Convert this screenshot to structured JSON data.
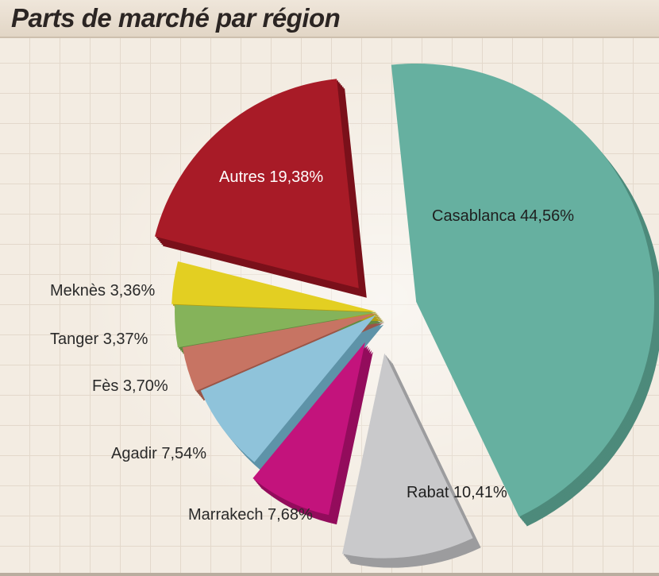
{
  "chart_data": {
    "type": "pie",
    "title": "Parts de marché par région",
    "slices": [
      {
        "label": "Casablanca 44,56%",
        "name": "Casablanca",
        "value": 44.56,
        "color": "#66b0a0",
        "side_color": "#4d8a7b"
      },
      {
        "label": "Rabat 10,41%",
        "name": "Rabat",
        "value": 10.41,
        "color": "#c9c9cb",
        "side_color": "#9c9c9e"
      },
      {
        "label": "Marrakech 7,68%",
        "name": "Marrakech",
        "value": 7.68,
        "color": "#c3137c",
        "side_color": "#930c5c"
      },
      {
        "label": "Agadir 7,54%",
        "name": "Agadir",
        "value": 7.54,
        "color": "#8fc3da",
        "side_color": "#5e93a8"
      },
      {
        "label": "Fès 3,70%",
        "name": "Fès",
        "value": 3.7,
        "color": "#c77463",
        "side_color": "#9a5547"
      },
      {
        "label": "Tanger 3,37%",
        "name": "Tanger",
        "value": 3.37,
        "color": "#85b35a",
        "side_color": "#648a40"
      },
      {
        "label": "Meknès 3,36%",
        "name": "Meknès",
        "value": 3.36,
        "color": "#e3cf22",
        "side_color": "#b09f14"
      },
      {
        "label": "Autres 19,38%",
        "name": "Autres",
        "value": 19.38,
        "color": "#a81b27",
        "side_color": "#7a101a"
      }
    ]
  }
}
